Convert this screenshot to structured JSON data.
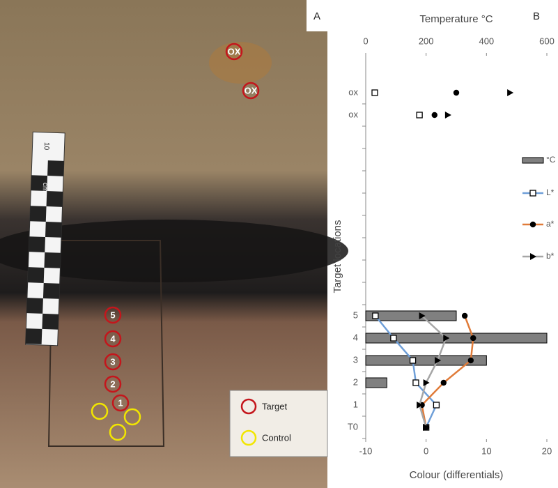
{
  "photo": {
    "label": "A",
    "markers": [
      "OX",
      "OX",
      "5",
      "4",
      "3",
      "2",
      "1"
    ],
    "ruler": [
      "10",
      "cm"
    ],
    "legend": [
      "Target",
      "Control"
    ]
  },
  "chart_data": {
    "type": "bar-line",
    "panel": "B",
    "xlabel": "Colour (differentials)",
    "x2label": "Temperature °C",
    "ylabel": "Target locations",
    "categories": [
      "T0",
      "1",
      "2",
      "3",
      "4",
      "5",
      null,
      null,
      null,
      null,
      null,
      null,
      null,
      null,
      "ox",
      "ox"
    ],
    "xlim": [
      -10,
      20
    ],
    "xticks": [
      -10,
      0,
      10,
      20
    ],
    "x2lim": [
      0,
      600
    ],
    "x2ticks": [
      0,
      200,
      400,
      600
    ],
    "series": [
      {
        "name": "°C",
        "type": "bar",
        "axis": "x2",
        "color": "#808080",
        "values": [
          null,
          null,
          70,
          400,
          600,
          300,
          null,
          null,
          null,
          null,
          null,
          null,
          null,
          null,
          null,
          null
        ]
      },
      {
        "name": "L*",
        "type": "line",
        "color": "#6f9fd8",
        "marker": "square",
        "values": [
          0,
          1.7,
          -1.7,
          -2.2,
          -5.4,
          -8.4,
          null,
          null,
          null,
          null,
          null,
          null,
          null,
          null,
          -1.1,
          -8.5
        ]
      },
      {
        "name": "a*",
        "type": "line",
        "color": "#e07b39",
        "marker": "circle",
        "values": [
          0,
          -0.7,
          2.9,
          7.4,
          7.8,
          6.4,
          null,
          null,
          null,
          null,
          null,
          null,
          null,
          null,
          1.4,
          5.0
        ]
      },
      {
        "name": "b*",
        "type": "line",
        "color": "#a6a6a6",
        "marker": "triangle",
        "values": [
          0,
          -1.1,
          0,
          1.9,
          3.3,
          -0.7,
          null,
          null,
          null,
          null,
          null,
          null,
          null,
          null,
          3.6,
          13.9
        ]
      }
    ]
  }
}
